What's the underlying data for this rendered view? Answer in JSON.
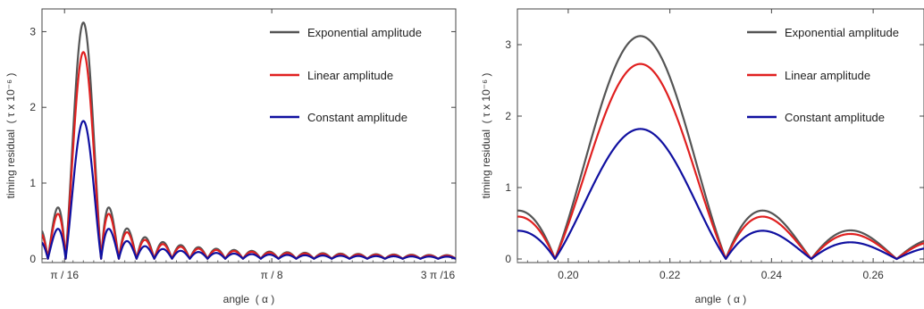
{
  "chart_data": [
    {
      "type": "line",
      "xlabel": "angle  ( α )",
      "ylabel": "timing residual  ( τ x 10⁻⁶ )",
      "xlim": [
        0.175,
        0.567
      ],
      "ylim": [
        -0.05,
        3.3
      ],
      "xticks": [
        {
          "value": 0.19635,
          "label": "π / 16"
        },
        {
          "value": 0.3927,
          "label": "π / 8"
        },
        {
          "value": 0.58905,
          "label": "3 π /16"
        }
      ],
      "yticks": [
        {
          "value": 0,
          "label": "0"
        },
        {
          "value": 1,
          "label": "1"
        },
        {
          "value": 2,
          "label": "2"
        },
        {
          "value": 3,
          "label": "3"
        }
      ],
      "legend_position": "top-right",
      "series": [
        {
          "name": "Exponential amplitude",
          "color": "#555555",
          "peak_x": 0.2142,
          "peak_y": 3.12
        },
        {
          "name": "Linear amplitude",
          "color": "#e02020",
          "peak_x": 0.2142,
          "peak_y": 2.73
        },
        {
          "name": "Constant amplitude",
          "color": "#1010a0",
          "peak_x": 0.2142,
          "peak_y": 1.82
        }
      ]
    },
    {
      "type": "line",
      "xlabel": "angle  ( α )",
      "ylabel": "timing residual  ( τ x 10⁻⁶ )",
      "xlim": [
        0.19,
        0.27
      ],
      "ylim": [
        -0.05,
        3.5
      ],
      "xticks": [
        {
          "value": 0.2,
          "label": "0.20"
        },
        {
          "value": 0.22,
          "label": "0.22"
        },
        {
          "value": 0.24,
          "label": "0.24"
        },
        {
          "value": 0.26,
          "label": "0.26"
        }
      ],
      "yticks": [
        {
          "value": 0,
          "label": "0"
        },
        {
          "value": 1,
          "label": "1"
        },
        {
          "value": 2,
          "label": "2"
        },
        {
          "value": 3,
          "label": "3"
        }
      ],
      "legend_position": "top-right",
      "series": [
        {
          "name": "Exponential amplitude",
          "color": "#555555",
          "peak_x": 0.2142,
          "peak_y": 3.12
        },
        {
          "name": "Linear amplitude",
          "color": "#e02020",
          "peak_x": 0.2142,
          "peak_y": 2.73
        },
        {
          "name": "Constant amplitude",
          "color": "#1010a0",
          "peak_x": 0.2142,
          "peak_y": 1.82
        }
      ]
    }
  ]
}
